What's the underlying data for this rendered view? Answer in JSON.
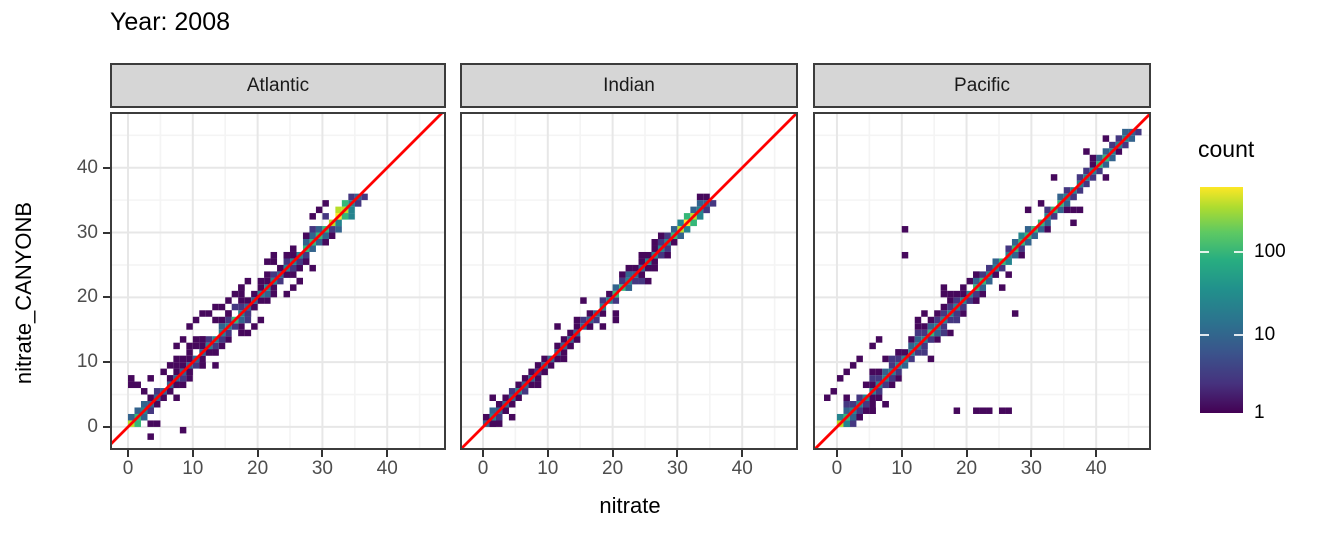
{
  "title": "Year: 2008",
  "x_axis": {
    "label": "nitrate",
    "ticks": [
      0,
      10,
      20,
      30,
      40
    ]
  },
  "y_axis": {
    "label": "nitrate_CANYONB",
    "ticks": [
      0,
      10,
      20,
      30,
      40
    ]
  },
  "legend": {
    "title": "count",
    "tick_labels": [
      "100",
      "10",
      "1"
    ]
  },
  "colors": {
    "reference_line": "#ff0000",
    "strip_bg": "#d6d6d6",
    "panel_border": "#3c3c3c",
    "grid_major": "#e7e7e7",
    "grid_minor": "#f4f4f4",
    "axis_text": "#4d4d4d",
    "level_colors": [
      "#46085c",
      "#453781",
      "#33638d",
      "#25848e",
      "#35b779",
      "#b8de29",
      "#fde725"
    ]
  },
  "chart_data": {
    "type": "heatmap",
    "subtype": "geom_bin2d faceted scatter-density",
    "title": "Year: 2008",
    "xlabel": "nitrate",
    "ylabel": "nitrate_CANYONB",
    "facets": [
      "Atlantic",
      "Indian",
      "Pacific"
    ],
    "x_ticks": [
      0,
      10,
      20,
      30,
      40
    ],
    "y_ticks": [
      0,
      10,
      20,
      30,
      40
    ],
    "xlim": [
      -3.7,
      48.6
    ],
    "ylim": [
      -3.6,
      48.6
    ],
    "bin_size": 1,
    "grid": true,
    "legend": {
      "title": "count",
      "scale": "log10",
      "ticks": [
        1,
        10,
        100
      ],
      "approx_max": 600,
      "colormap": "viridis",
      "position": "right"
    },
    "reference_line": {
      "equation": "y = x",
      "color": "#ff0000"
    },
    "level_to_count": {
      "1": 1,
      "2": 4,
      "3": 10,
      "4": 30,
      "5": 90,
      "6": 250,
      "7": 600
    },
    "facet_data": [
      {
        "name": "Atlantic",
        "seed": 7,
        "speckle": 24,
        "diagonal_extent": [
          0,
          36
        ],
        "band": [
          [
            0,
            6,
            1
          ],
          [
            1,
            5,
            1
          ],
          [
            2,
            4,
            1
          ],
          [
            3,
            3,
            1
          ],
          [
            4,
            3,
            1
          ],
          [
            5,
            3,
            1
          ],
          [
            6,
            3,
            2
          ],
          [
            7,
            3,
            2
          ],
          [
            8,
            3,
            2
          ],
          [
            9,
            3,
            2
          ],
          [
            10,
            3,
            2
          ],
          [
            11,
            3,
            2
          ],
          [
            12,
            4,
            2
          ],
          [
            13,
            4,
            2
          ],
          [
            14,
            4,
            2
          ],
          [
            15,
            4,
            2
          ],
          [
            16,
            5,
            2
          ],
          [
            17,
            4,
            2
          ],
          [
            18,
            3,
            2
          ],
          [
            19,
            3,
            2
          ],
          [
            20,
            4,
            2
          ],
          [
            21,
            4,
            2
          ],
          [
            22,
            4,
            2
          ],
          [
            23,
            3,
            2
          ],
          [
            24,
            4,
            2
          ],
          [
            25,
            4,
            2
          ],
          [
            26,
            4,
            2
          ],
          [
            27,
            5,
            2
          ],
          [
            28,
            5,
            2
          ],
          [
            29,
            5,
            2
          ],
          [
            30,
            5,
            2
          ],
          [
            31,
            6,
            2
          ],
          [
            32,
            7,
            2
          ],
          [
            33,
            6,
            1
          ],
          [
            34,
            4,
            1
          ],
          [
            35,
            3,
            1
          ]
        ],
        "outliers": [
          [
            0,
            6
          ],
          [
            0,
            7.5
          ],
          [
            1,
            6.5
          ],
          [
            3,
            -1.7
          ],
          [
            8.5,
            -0.5
          ],
          [
            5,
            8
          ],
          [
            6,
            9
          ],
          [
            7,
            10
          ],
          [
            7,
            12
          ],
          [
            8,
            13
          ],
          [
            9,
            15
          ],
          [
            10,
            16
          ],
          [
            11,
            17
          ],
          [
            12,
            17.5
          ],
          [
            13,
            18.5
          ],
          [
            9,
            12
          ],
          [
            10,
            13
          ],
          [
            14,
            18
          ],
          [
            15,
            19
          ],
          [
            17,
            21
          ],
          [
            18,
            22
          ],
          [
            21,
            25
          ],
          [
            22,
            26
          ],
          [
            25,
            21
          ],
          [
            26,
            22
          ],
          [
            28,
            24
          ],
          [
            24,
            20
          ],
          [
            18,
            14
          ],
          [
            19,
            15
          ],
          [
            29,
            33
          ],
          [
            30,
            34
          ]
        ]
      },
      {
        "name": "Indian",
        "seed": 3,
        "speckle": 6,
        "diagonal_extent": [
          0,
          35
        ],
        "band": [
          [
            0,
            3,
            1
          ],
          [
            1,
            4,
            1
          ],
          [
            2,
            3,
            1
          ],
          [
            3,
            3,
            1
          ],
          [
            4,
            3,
            1
          ],
          [
            5,
            4,
            1
          ],
          [
            6,
            3,
            1
          ],
          [
            7,
            3,
            1
          ],
          [
            8,
            2,
            1
          ],
          [
            9,
            3,
            1
          ],
          [
            10,
            3,
            1
          ],
          [
            11,
            3,
            1
          ],
          [
            12,
            3,
            1
          ],
          [
            13,
            3,
            1
          ],
          [
            14,
            3,
            1
          ],
          [
            15,
            3,
            1
          ],
          [
            16,
            3,
            1
          ],
          [
            17,
            3,
            1
          ],
          [
            18,
            4,
            1
          ],
          [
            19,
            4,
            1
          ],
          [
            20,
            5,
            1
          ],
          [
            21,
            5,
            1
          ],
          [
            22,
            4,
            2
          ],
          [
            23,
            3,
            2
          ],
          [
            24,
            3,
            2
          ],
          [
            25,
            4,
            2
          ],
          [
            26,
            4,
            2
          ],
          [
            27,
            4,
            1
          ],
          [
            28,
            4,
            1
          ],
          [
            29,
            5,
            1
          ],
          [
            30,
            6,
            1
          ],
          [
            31,
            7,
            1
          ],
          [
            32,
            6,
            1
          ],
          [
            33,
            4,
            1
          ],
          [
            34,
            3,
            1
          ]
        ],
        "outliers": [
          [
            1.8,
            4.4
          ],
          [
            2.5,
            0.5
          ],
          [
            25.5,
            22.5
          ],
          [
            14,
            16
          ],
          [
            21,
            23
          ],
          [
            27,
            29
          ],
          [
            12,
            10
          ],
          [
            33,
            35
          ],
          [
            8,
            6.5
          ]
        ]
      },
      {
        "name": "Pacific",
        "seed": 13,
        "speckle": 28,
        "diagonal_extent": [
          0,
          46
        ],
        "band": [
          [
            0,
            6,
            2
          ],
          [
            1,
            5,
            3
          ],
          [
            2,
            4,
            3
          ],
          [
            3,
            4,
            3
          ],
          [
            4,
            4,
            3
          ],
          [
            5,
            4,
            3
          ],
          [
            6,
            4,
            3
          ],
          [
            7,
            4,
            3
          ],
          [
            8,
            4,
            3
          ],
          [
            9,
            4,
            2
          ],
          [
            10,
            4,
            2
          ],
          [
            11,
            4,
            2
          ],
          [
            12,
            4,
            2
          ],
          [
            13,
            4,
            2
          ],
          [
            14,
            5,
            2
          ],
          [
            15,
            4,
            2
          ],
          [
            16,
            4,
            2
          ],
          [
            17,
            4,
            2
          ],
          [
            18,
            4,
            2
          ],
          [
            19,
            4,
            2
          ],
          [
            20,
            4,
            2
          ],
          [
            21,
            5,
            2
          ],
          [
            22,
            5,
            1
          ],
          [
            23,
            4,
            1
          ],
          [
            24,
            4,
            1
          ],
          [
            25,
            5,
            1
          ],
          [
            26,
            4,
            1
          ],
          [
            27,
            5,
            1
          ],
          [
            28,
            5,
            1
          ],
          [
            29,
            5,
            1
          ],
          [
            30,
            5,
            1
          ],
          [
            31,
            5,
            1
          ],
          [
            32,
            4,
            1
          ],
          [
            33,
            5,
            1
          ],
          [
            34,
            5,
            1
          ],
          [
            35,
            4,
            1
          ],
          [
            36,
            4,
            1
          ],
          [
            37,
            4,
            1
          ],
          [
            38,
            4,
            1
          ],
          [
            39,
            4,
            1
          ],
          [
            40,
            5,
            1
          ],
          [
            41,
            5,
            1
          ],
          [
            42,
            4,
            1
          ],
          [
            43,
            4,
            1
          ],
          [
            44,
            4,
            1
          ],
          [
            45,
            3,
            1
          ]
        ],
        "outliers": [
          [
            10.5,
            30
          ],
          [
            10.5,
            26.5
          ],
          [
            16,
            21.5
          ],
          [
            27.5,
            17
          ],
          [
            33.5,
            38
          ],
          [
            18.5,
            2.5
          ],
          [
            21,
            2.5
          ],
          [
            22,
            2.5
          ],
          [
            23.5,
            2.5
          ],
          [
            25,
            2.5
          ],
          [
            26,
            2.5
          ],
          [
            -1,
            5
          ],
          [
            0,
            7
          ],
          [
            1,
            8
          ],
          [
            -2,
            4
          ],
          [
            2,
            9
          ],
          [
            3,
            10
          ],
          [
            5,
            12
          ],
          [
            6,
            13
          ],
          [
            36,
            31.5
          ],
          [
            13,
            17
          ],
          [
            12,
            16
          ]
        ]
      }
    ]
  }
}
